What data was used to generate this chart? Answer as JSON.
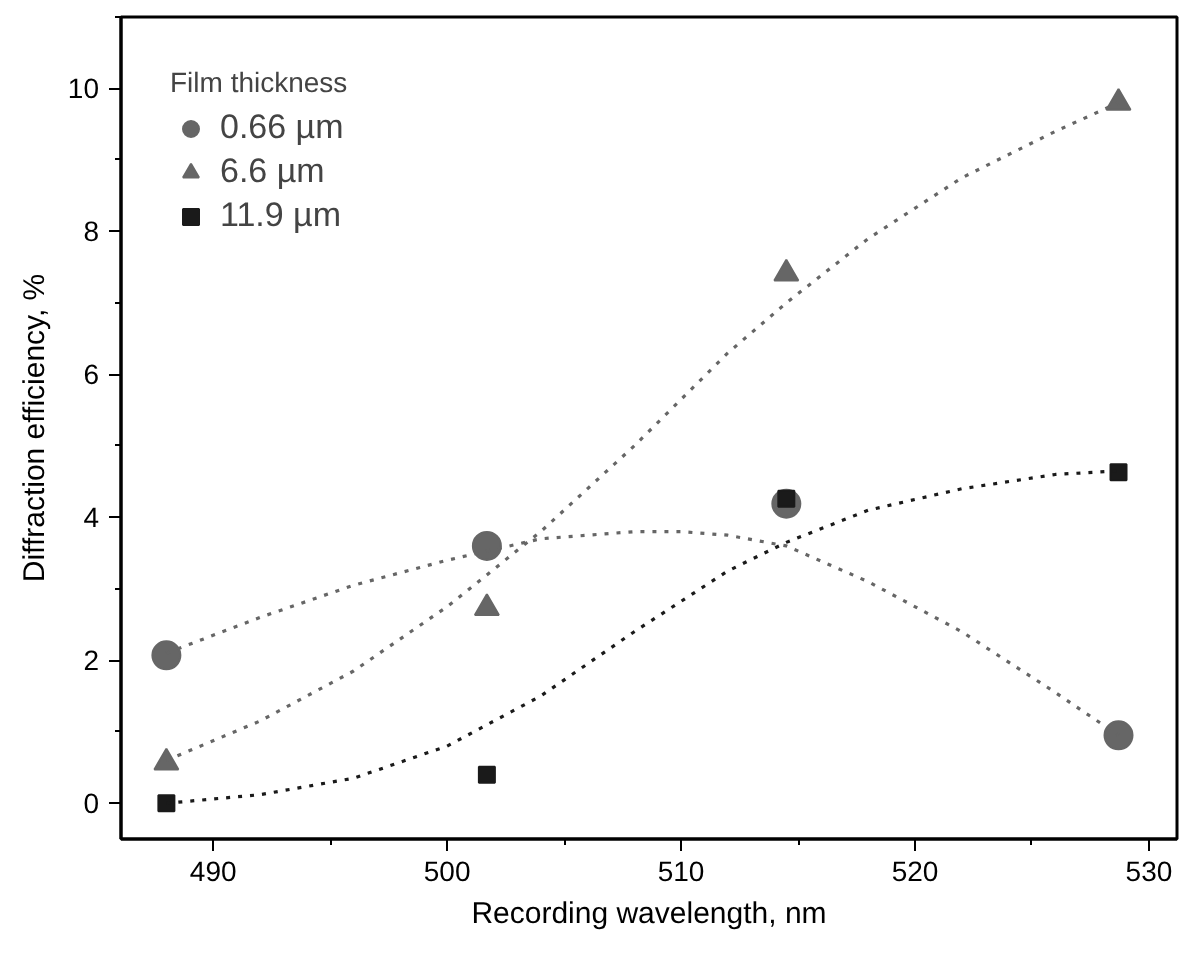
{
  "chart_data": {
    "type": "scatter",
    "xlabel": "Recording wavelength, nm",
    "ylabel": "Diffraction efficiency, %",
    "legend_title": "Film thickness",
    "legend": "top left",
    "grid": false,
    "xlim": [
      486.06,
      531.2
    ],
    "xticks": [
      490,
      500,
      510,
      520,
      530
    ],
    "ylim": [
      -0.5,
      11
    ],
    "yticks": [
      0,
      2,
      4,
      6,
      8,
      10
    ],
    "series": [
      {
        "name": "0.66 µm",
        "marker": "circle",
        "color": "#666666",
        "x": [
          488,
          501.7,
          514.5,
          528.7
        ],
        "values": [
          2.07,
          3.6,
          4.19,
          0.95
        ]
      },
      {
        "name": "6.6 µm",
        "marker": "triangle",
        "color": "#666666",
        "x": [
          488,
          501.7,
          514.5,
          528.7
        ],
        "values": [
          0.57,
          2.73,
          7.41,
          9.8
        ]
      },
      {
        "name": "11.9 µm",
        "marker": "square",
        "color": "#1a1a1a",
        "x": [
          488,
          501.7,
          514.5,
          528.7
        ],
        "values": [
          0.0,
          0.4,
          4.26,
          4.63
        ]
      },
      {
        "type": "line",
        "line_style": "dotted",
        "color": "#666666",
        "x": [
          488,
          492,
          496,
          500,
          504,
          508,
          510,
          512,
          514.5,
          518,
          522,
          526,
          528.7
        ],
        "values": [
          2.1,
          2.6,
          3.05,
          3.4,
          3.7,
          3.8,
          3.8,
          3.75,
          3.6,
          3.1,
          2.4,
          1.55,
          0.95
        ]
      },
      {
        "type": "line",
        "line_style": "dotted",
        "color": "#666666",
        "x": [
          488,
          492,
          496,
          500,
          504,
          508,
          512,
          514.5,
          518,
          522,
          526,
          528.7
        ],
        "values": [
          0.6,
          1.15,
          1.85,
          2.75,
          3.8,
          5.0,
          6.3,
          7.0,
          7.9,
          8.75,
          9.4,
          9.8
        ]
      },
      {
        "type": "line",
        "line_style": "dotted",
        "color": "#1a1a1a",
        "x": [
          488,
          492,
          496,
          500,
          504,
          508,
          512,
          514.5,
          518,
          522,
          526,
          528.7
        ],
        "values": [
          0.0,
          0.12,
          0.35,
          0.8,
          1.5,
          2.4,
          3.25,
          3.65,
          4.1,
          4.4,
          4.6,
          4.65
        ]
      }
    ]
  }
}
